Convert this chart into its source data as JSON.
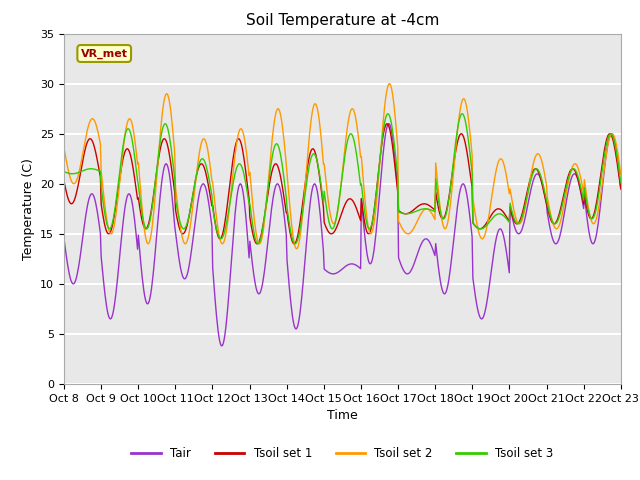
{
  "title": "Soil Temperature at -4cm",
  "xlabel": "Time",
  "ylabel": "Temperature (C)",
  "ylim": [
    0,
    35
  ],
  "xtick_labels": [
    "Oct 8",
    "Oct 9",
    "Oct 10",
    "Oct 11",
    "Oct 12",
    "Oct 13",
    "Oct 14",
    "Oct 15",
    "Oct 16",
    "Oct 17",
    "Oct 18",
    "Oct 19",
    "Oct 20",
    "Oct 21",
    "Oct 22",
    "Oct 23"
  ],
  "ytick_labels": [
    "0",
    "5",
    "10",
    "15",
    "20",
    "25",
    "30",
    "35"
  ],
  "legend_label_box": "VR_met",
  "legend_box_facecolor": "#ffffcc",
  "legend_box_edgecolor": "#999900",
  "legend_box_textcolor": "#990000",
  "series_colors": [
    "#9933cc",
    "#cc0000",
    "#ff9900",
    "#33cc00"
  ],
  "series_labels": [
    "Tair",
    "Tsoil set 1",
    "Tsoil set 2",
    "Tsoil set 3"
  ],
  "axes_facecolor": "#e8e8e8",
  "grid_color": "white",
  "title_fontsize": 11,
  "axis_label_fontsize": 9,
  "tick_fontsize": 8,
  "figsize": [
    6.4,
    4.8
  ],
  "dpi": 100
}
